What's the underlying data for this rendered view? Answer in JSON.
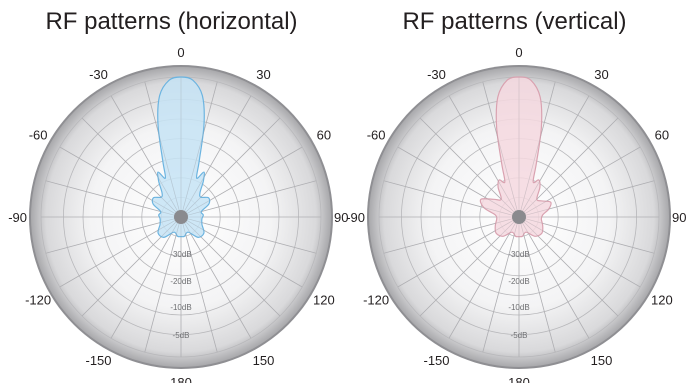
{
  "chart_data": [
    {
      "type": "polar-line",
      "title": "RF patterns (horizontal)",
      "angle_ticks": [
        "0",
        "30",
        "60",
        "90",
        "120",
        "150",
        "180",
        "-150",
        "-120",
        "-90",
        "-60",
        "-30"
      ],
      "radial_labels": [
        "-30dB",
        "-20dB",
        "-10dB",
        "-5dB"
      ],
      "grid": true,
      "fill_color": "#c6e3f5",
      "stroke_color": "#6cb4e0",
      "series": [
        {
          "angle": [
            0,
            5,
            10,
            14,
            18,
            22,
            27,
            32,
            38,
            45,
            55,
            65,
            75,
            85,
            95,
            110,
            125,
            140,
            155,
            170,
            180,
            -170,
            -155,
            -140,
            -125,
            -110,
            -95,
            -85,
            -75,
            -65,
            -55,
            -45,
            -38,
            -32,
            -27,
            -22,
            -18,
            -14,
            -10,
            -5
          ],
          "magnitude": [
            1.0,
            0.98,
            0.88,
            0.68,
            0.42,
            0.3,
            0.36,
            0.3,
            0.22,
            0.2,
            0.24,
            0.22,
            0.15,
            0.16,
            0.15,
            0.16,
            0.2,
            0.19,
            0.12,
            0.14,
            0.14,
            0.14,
            0.12,
            0.19,
            0.2,
            0.16,
            0.15,
            0.16,
            0.15,
            0.22,
            0.24,
            0.2,
            0.22,
            0.3,
            0.36,
            0.3,
            0.42,
            0.68,
            0.88,
            0.98
          ]
        }
      ]
    },
    {
      "type": "polar-line",
      "title": "RF patterns (vertical)",
      "angle_ticks": [
        "0",
        "30",
        "60",
        "90",
        "120",
        "150",
        "180",
        "-150",
        "-120",
        "-90",
        "-60",
        "-30"
      ],
      "radial_labels": [
        "-30dB",
        "-20dB",
        "-10dB",
        "-5dB"
      ],
      "grid": true,
      "fill_color": "#f5d8df",
      "stroke_color": "#d9a2b0",
      "series": [
        {
          "angle": [
            0,
            5,
            10,
            14,
            18,
            22,
            28,
            35,
            45,
            55,
            65,
            75,
            85,
            95,
            110,
            125,
            140,
            155,
            170,
            180,
            -170,
            -155,
            -140,
            -125,
            -110,
            -95,
            -85,
            -75,
            -65,
            -55,
            -45,
            -35,
            -28,
            -22,
            -18,
            -14,
            -10,
            -5
          ],
          "magnitude": [
            1.0,
            0.98,
            0.87,
            0.66,
            0.4,
            0.27,
            0.3,
            0.26,
            0.18,
            0.2,
            0.25,
            0.22,
            0.17,
            0.16,
            0.18,
            0.2,
            0.18,
            0.12,
            0.14,
            0.14,
            0.14,
            0.12,
            0.18,
            0.2,
            0.18,
            0.16,
            0.17,
            0.26,
            0.3,
            0.22,
            0.18,
            0.26,
            0.3,
            0.27,
            0.4,
            0.66,
            0.87,
            0.98
          ]
        }
      ]
    }
  ]
}
